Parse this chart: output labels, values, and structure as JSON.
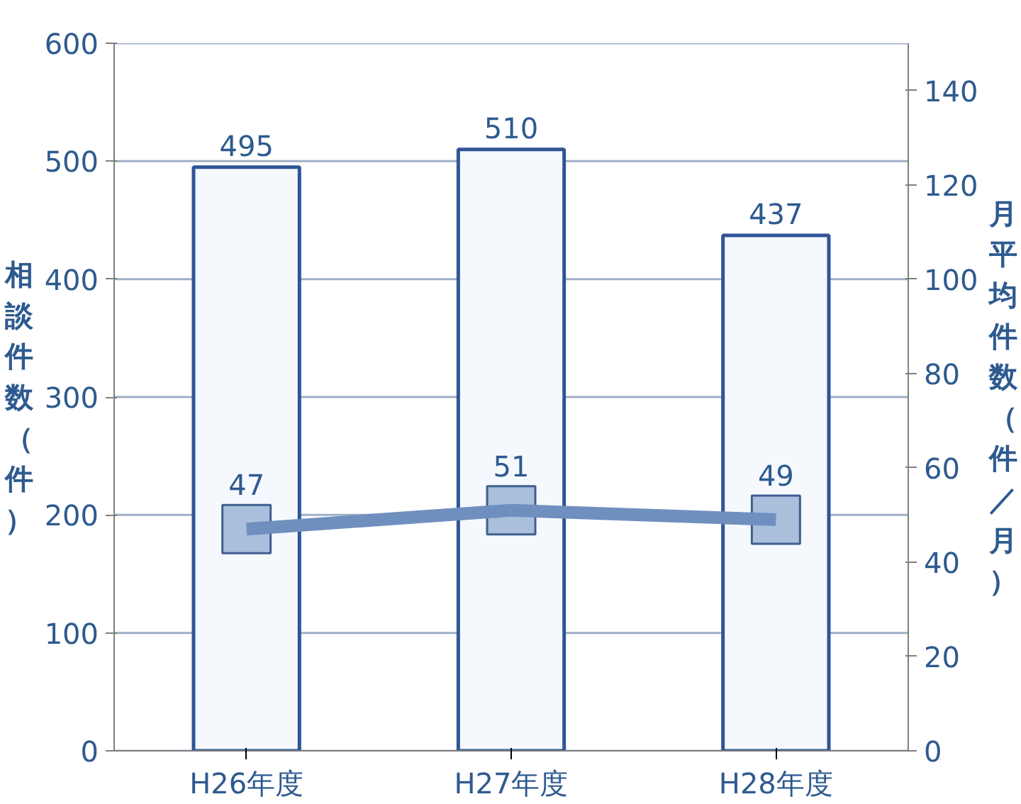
{
  "chart_data": {
    "type": "bar",
    "categories": [
      "H26年度",
      "H27年度",
      "H28年度"
    ],
    "ylabel": "相談件数（件）",
    "y2label": "月平均件数（件／月）",
    "ylim": [
      0,
      600
    ],
    "yticks": [
      0,
      100,
      200,
      300,
      400,
      500,
      600
    ],
    "y2lim": [
      0,
      150
    ],
    "y2ticks": [
      0,
      20,
      40,
      60,
      80,
      100,
      120,
      140
    ],
    "series": [
      {
        "color": "#2f5597",
        "values": [
          495,
          510,
          437
        ]
      },
      {
        "type": "line",
        "axis": "y2",
        "color": "#6f8fbf",
        "marker": "square",
        "values": [
          47,
          51,
          49
        ]
      }
    ],
    "data_labels": true,
    "grid": "y"
  }
}
